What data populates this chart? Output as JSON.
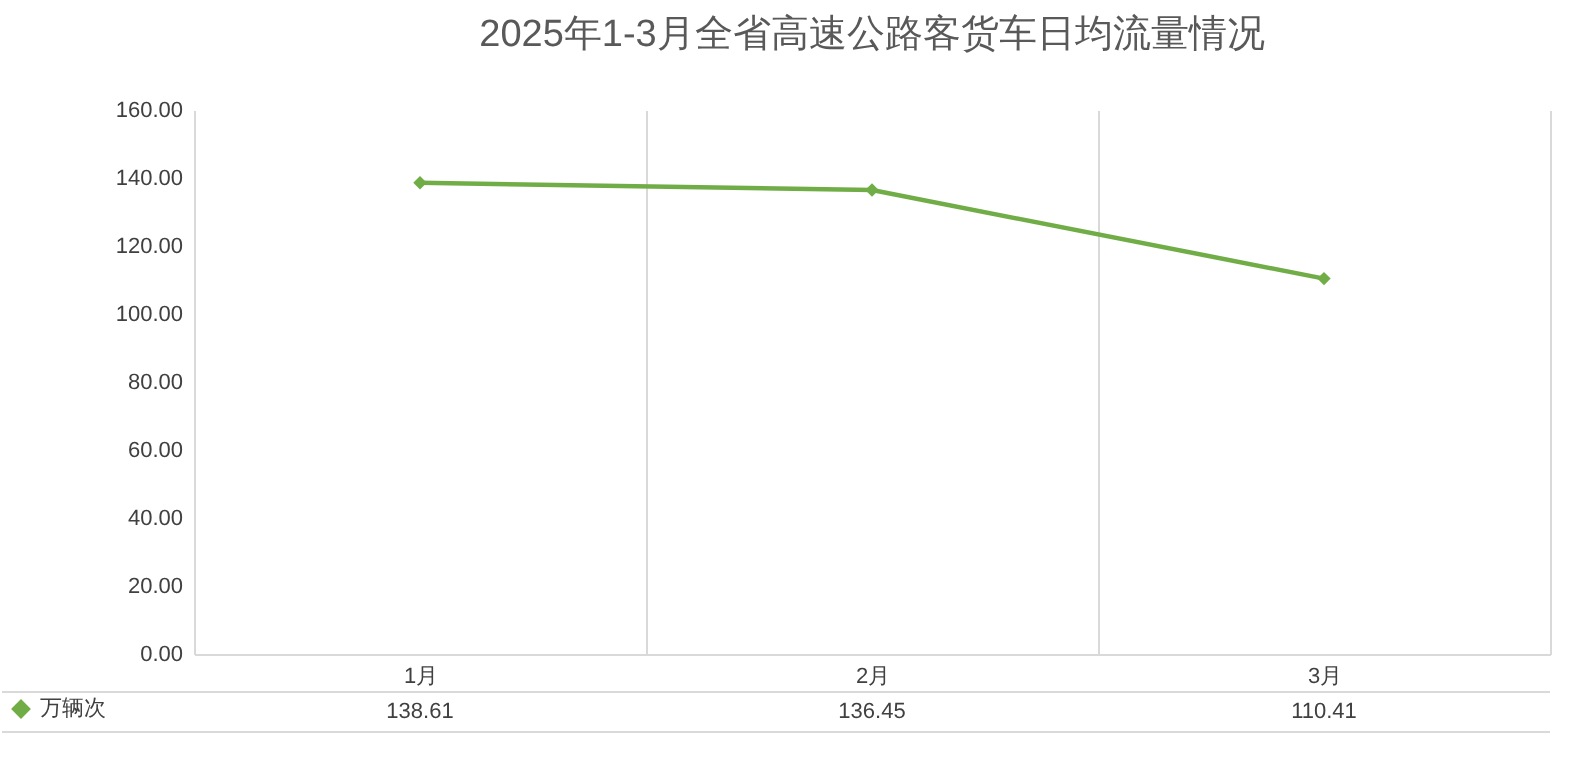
{
  "chart_data": {
    "type": "line",
    "title": "2025年1-3月全省高速公路客货车日均流量情况",
    "categories": [
      "1月",
      "2月",
      "3月"
    ],
    "series": [
      {
        "name": "万辆次",
        "color": "#70ad47",
        "values": [
          138.61,
          136.45,
          110.41
        ]
      }
    ],
    "ylim": [
      0,
      160
    ],
    "yticks": [
      {
        "value": 0,
        "label": "0.00"
      },
      {
        "value": 20,
        "label": "20.00"
      },
      {
        "value": 40,
        "label": "40.00"
      },
      {
        "value": 60,
        "label": "60.00"
      },
      {
        "value": 80,
        "label": "80.00"
      },
      {
        "value": 100,
        "label": "100.00"
      },
      {
        "value": 120,
        "label": "120.00"
      },
      {
        "value": 140,
        "label": "140.00"
      },
      {
        "value": 160,
        "label": "160.00"
      }
    ],
    "grid": "x",
    "marker": "diamond",
    "line_style": "solid",
    "data_labels": true,
    "legend": "bottom left"
  }
}
